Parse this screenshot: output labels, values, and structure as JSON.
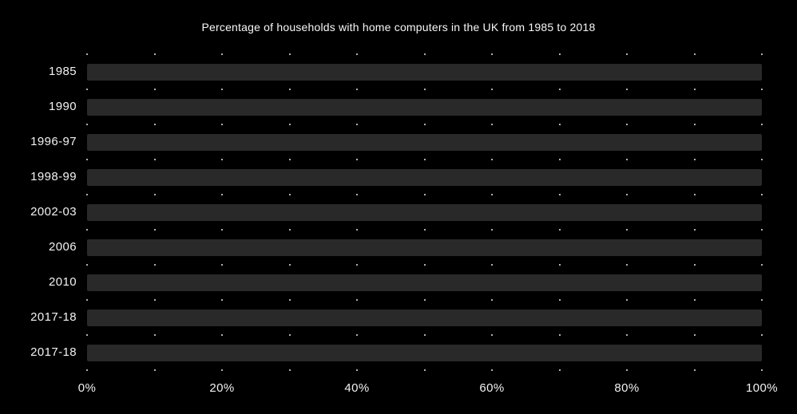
{
  "title": "Percentage of households with home computers in the UK from 1985 to 2018",
  "colors": {
    "background": "#000000",
    "bar": "#292929",
    "text": "#f2f2f2",
    "grid_dot": "#e9e9e9"
  },
  "chart_data": {
    "type": "bar",
    "orientation": "horizontal",
    "title": "Percentage of households with home computers in the UK from 1985 to 2018",
    "categories": [
      "1985",
      "1990",
      "1996-97",
      "1998-99",
      "2002-03",
      "2006",
      "2010",
      "2017-18",
      "2017-18"
    ],
    "values": [
      100,
      100,
      100,
      100,
      100,
      100,
      100,
      100,
      100
    ],
    "xlabel": "",
    "ylabel": "",
    "xlim": [
      0,
      100
    ],
    "x_tick_values": [
      0,
      20,
      40,
      60,
      80,
      100
    ],
    "x_tick_labels": [
      "0%",
      "20%",
      "40%",
      "60%",
      "80%",
      "100%"
    ],
    "grid": "dotted-vertical-10pct",
    "legend_position": "none"
  }
}
